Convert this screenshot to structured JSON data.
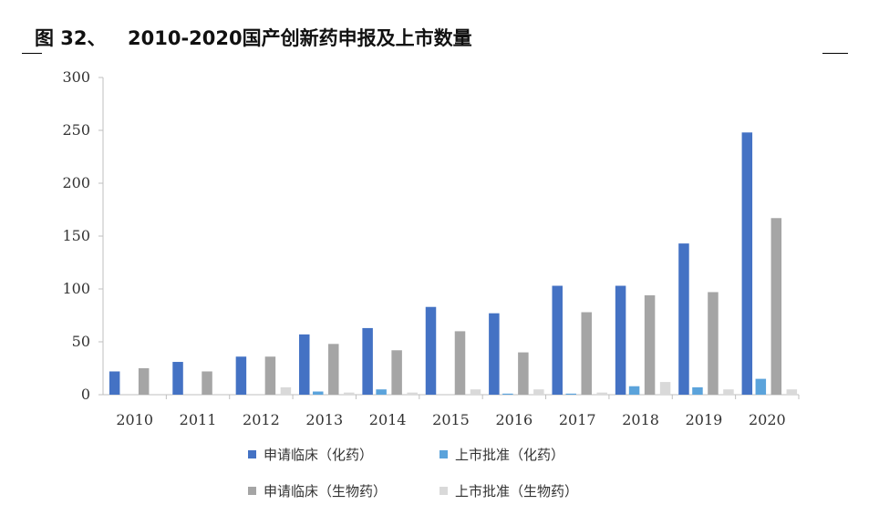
{
  "title": {
    "prefix": "图 32、",
    "text": "2010-2020国产创新药申报及上市数量"
  },
  "colors": {
    "series1": "#4472C4",
    "series2": "#5BA3DB",
    "series3": "#A5A5A5",
    "series4": "#D9D9D9",
    "axis": "#BFBFBF"
  },
  "chart_data": {
    "type": "bar",
    "categories": [
      "2010",
      "2011",
      "2012",
      "2013",
      "2014",
      "2015",
      "2016",
      "2017",
      "2018",
      "2019",
      "2020"
    ],
    "series": [
      {
        "name": "申请临床（化药）",
        "values": [
          22,
          31,
          36,
          57,
          63,
          83,
          77,
          103,
          103,
          143,
          248
        ]
      },
      {
        "name": "上市批准（化药）",
        "values": [
          0,
          0,
          0,
          3,
          5,
          0,
          1,
          1,
          8,
          7,
          15
        ]
      },
      {
        "name": "申请临床（生物药）",
        "values": [
          25,
          22,
          36,
          48,
          42,
          60,
          40,
          78,
          94,
          97,
          167
        ]
      },
      {
        "name": "上市批准（生物药）",
        "values": [
          0,
          0,
          7,
          2,
          2,
          5,
          5,
          2,
          12,
          5,
          5
        ]
      }
    ],
    "ylim": [
      0,
      300
    ],
    "yticks": [
      "0",
      "50",
      "100",
      "150",
      "200",
      "250",
      "300"
    ],
    "grid": false,
    "legend_position": "bottom"
  }
}
